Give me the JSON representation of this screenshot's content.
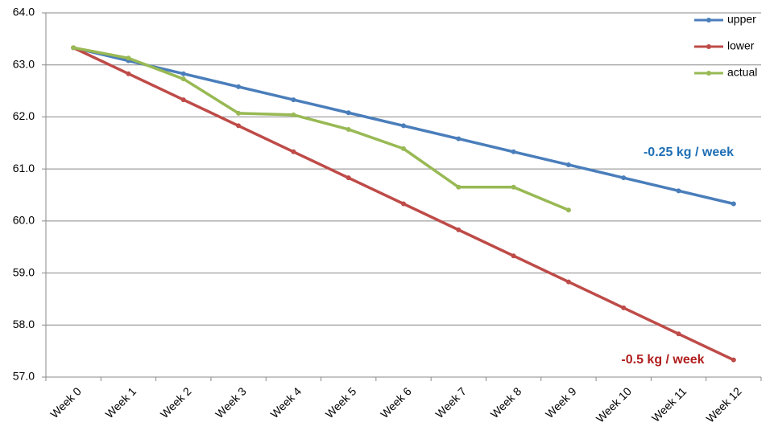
{
  "chart_data": {
    "type": "line",
    "categories": [
      "Week 0",
      "Week 1",
      "Week 2",
      "Week 3",
      "Week 4",
      "Week 5",
      "Week 6",
      "Week 7",
      "Week 8",
      "Week 9",
      "Week 10",
      "Week 11",
      "Week 12"
    ],
    "series": [
      {
        "name": "upper",
        "color": "#4a7ebb",
        "values": [
          63.33,
          63.08,
          62.83,
          62.58,
          62.33,
          62.08,
          61.83,
          61.58,
          61.33,
          61.08,
          60.83,
          60.58,
          60.33
        ]
      },
      {
        "name": "lower",
        "color": "#be4b48",
        "values": [
          63.33,
          62.83,
          62.33,
          61.83,
          61.33,
          60.83,
          60.33,
          59.83,
          59.33,
          58.83,
          58.33,
          57.83,
          57.33
        ]
      },
      {
        "name": "actual",
        "color": "#98b954",
        "values": [
          63.33,
          63.13,
          62.73,
          62.07,
          62.04,
          61.76,
          61.39,
          60.65,
          60.65,
          60.21,
          null,
          null,
          null
        ]
      }
    ],
    "ylim": [
      57,
      64
    ],
    "yticks": [
      {
        "value": 57,
        "label": "57.0"
      },
      {
        "value": 58,
        "label": "58.0"
      },
      {
        "value": 59,
        "label": "59.0"
      },
      {
        "value": 60,
        "label": "60.0"
      },
      {
        "value": 61,
        "label": "61.0"
      },
      {
        "value": 62,
        "label": "62.0"
      },
      {
        "value": 63,
        "label": "63.0"
      },
      {
        "value": 64,
        "label": "64.0"
      }
    ],
    "grid": true,
    "legend": "top-right",
    "annotations": [
      {
        "text": "-0.25 kg / week",
        "color": "#1f6fb5"
      },
      {
        "text": "-0.5 kg / week",
        "color": "#b01e1e"
      }
    ]
  }
}
